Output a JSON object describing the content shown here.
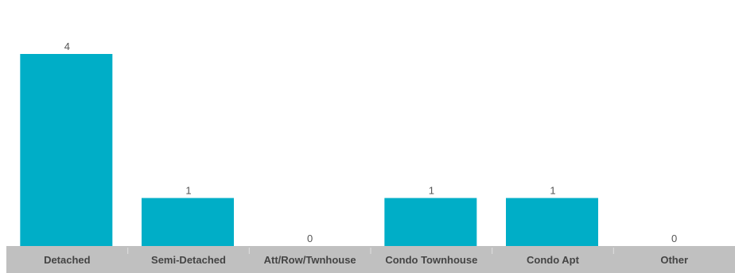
{
  "chart_data": {
    "type": "bar",
    "categories": [
      "Detached",
      "Semi-Detached",
      "Att/Row/Twnhouse",
      "Condo Townhouse",
      "Condo Apt",
      "Other"
    ],
    "values": [
      4,
      1,
      0,
      1,
      1,
      0
    ],
    "data_labels": [
      "4",
      "1",
      "0",
      "1",
      "1",
      "0"
    ],
    "ylim": [
      0,
      4
    ],
    "grid": false,
    "legend": "none",
    "bar_color": "#00aec7",
    "axis_band_color": "#c0c0c0",
    "separator_color": "#e0e0e0"
  }
}
